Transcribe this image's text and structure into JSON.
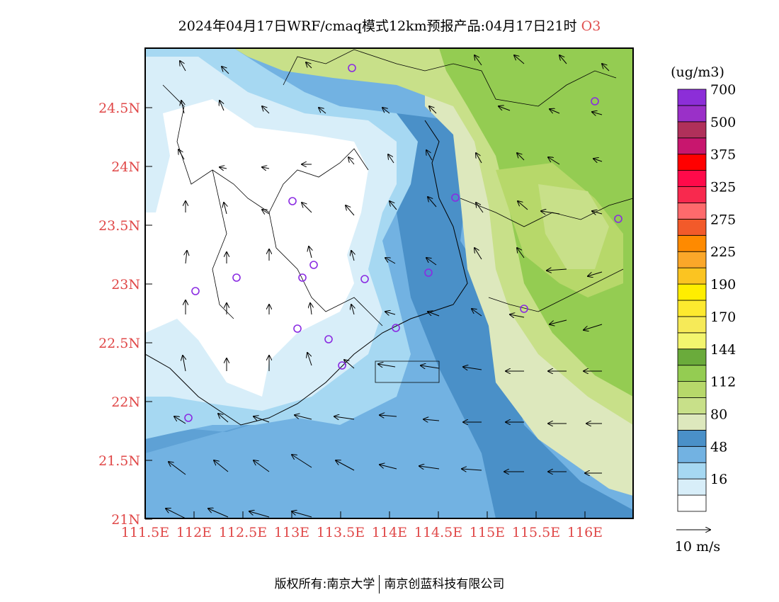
{
  "title": {
    "main": "2024年04月17日WRF/cmaq模式12km预报产品:04月17日21时",
    "species": "O3"
  },
  "map": {
    "lon_ticks": [
      "111.5E",
      "112E",
      "112.5E",
      "113E",
      "113.5E",
      "114E",
      "114.5E",
      "115E",
      "115.5E",
      "116E"
    ],
    "lat_ticks": [
      "24.5N",
      "24N",
      "23.5N",
      "23N",
      "22.5N",
      "22N",
      "21.5N",
      "21N"
    ]
  },
  "legend": {
    "unit": "(ug/m3)",
    "levels": [
      {
        "label": "",
        "color": "#ffffff"
      },
      {
        "label": "16",
        "color": "#d8eef9"
      },
      {
        "label": "",
        "color": "#a6d8f2"
      },
      {
        "label": "48",
        "color": "#72b2e2"
      },
      {
        "label": "",
        "color": "#4a90c8"
      },
      {
        "label": "80",
        "color": "#dde8bd"
      },
      {
        "label": "",
        "color": "#c8e089"
      },
      {
        "label": "112",
        "color": "#b7d86a"
      },
      {
        "label": "",
        "color": "#94cc52"
      },
      {
        "label": "144",
        "color": "#6aab3b"
      },
      {
        "label": "",
        "color": "#f3f56e"
      },
      {
        "label": "170",
        "color": "#f6ea58"
      },
      {
        "label": "",
        "color": "#fde92f"
      },
      {
        "label": "190",
        "color": "#ffee00"
      },
      {
        "label": "",
        "color": "#fbc421"
      },
      {
        "label": "225",
        "color": "#fba729"
      },
      {
        "label": "",
        "color": "#fe8a00"
      },
      {
        "label": "275",
        "color": "#f25a2a"
      },
      {
        "label": "",
        "color": "#fe6a6c"
      },
      {
        "label": "325",
        "color": "#f8294e"
      },
      {
        "label": "",
        "color": "#ff0a4a"
      },
      {
        "label": "375",
        "color": "#ff0000"
      },
      {
        "label": "",
        "color": "#c8166e"
      },
      {
        "label": "500",
        "color": "#b0305a"
      },
      {
        "label": "",
        "color": "#9a30c8"
      },
      {
        "label": "700",
        "color": "#8c2ed8"
      }
    ],
    "wind_ref": "10 m/s"
  },
  "colors": {
    "tick_label": "#e04848",
    "station_marker": "#8a2be2"
  },
  "footer": {
    "left": "版权所有:南京大学",
    "right": "南京创蓝科技有限公司"
  }
}
